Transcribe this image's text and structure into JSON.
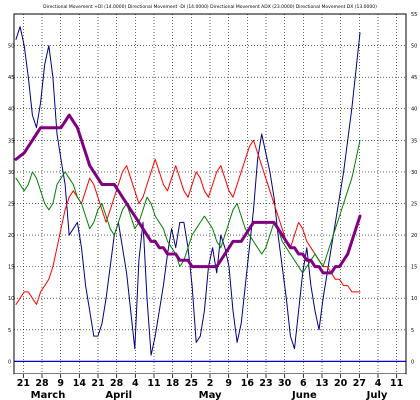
{
  "chart_data": {
    "type": "line",
    "title": "Directional Movement +DI (14.0000) Directional Movement -DI (14.0000) Directional Movement ADX (23.0000) Directional Movement DX (13.0000)",
    "ylim": [
      -2,
      55
    ],
    "y_ticks_left": [
      0,
      5,
      10,
      15,
      20,
      25,
      30,
      35,
      40,
      45,
      50
    ],
    "y_ticks_right": [
      0,
      5,
      10,
      15,
      20,
      25,
      30,
      35,
      40,
      45,
      50,
      55
    ],
    "x_ticks": [
      "21",
      "28",
      "9",
      "14",
      "21",
      "28",
      "4",
      "11",
      "18",
      "25",
      "2",
      "9",
      "16",
      "23",
      "30",
      "6",
      "13",
      "20",
      "27",
      "4",
      "11"
    ],
    "month_labels": [
      "March",
      "April",
      "May",
      "June",
      "July"
    ],
    "grid": true,
    "zero_line_color": "#0000cc",
    "series": [
      {
        "color": "#000080",
        "values": [
          51,
          53,
          50,
          45,
          39,
          37,
          41,
          47,
          50,
          45,
          36,
          32,
          28,
          20,
          21,
          22,
          18,
          12,
          8,
          4,
          4,
          6,
          10,
          15,
          20,
          22,
          18,
          14,
          8,
          2,
          16,
          22,
          10,
          1,
          4,
          8,
          12,
          17,
          21,
          18,
          22,
          22,
          18,
          12,
          3,
          4,
          8,
          15,
          18,
          14,
          20,
          18,
          15,
          8,
          3,
          6,
          12,
          18,
          24,
          32,
          36,
          33,
          30,
          26,
          20,
          15,
          10,
          4,
          2,
          8,
          14,
          18,
          12,
          8,
          5,
          10,
          14,
          18,
          22,
          26,
          30,
          35,
          40,
          46,
          52
        ]
      },
      {
        "color": "#ff0000",
        "values": [
          9,
          10,
          11,
          11,
          10,
          9,
          11,
          12,
          13,
          15,
          18,
          21,
          24,
          26,
          27,
          26,
          25,
          27,
          29,
          28,
          26,
          24,
          22,
          24,
          26,
          28,
          30,
          31,
          29,
          27,
          25,
          26,
          28,
          30,
          32,
          30,
          28,
          27,
          29,
          31,
          29,
          27,
          26,
          28,
          30,
          29,
          27,
          26,
          28,
          30,
          31,
          29,
          27,
          26,
          28,
          30,
          32,
          34,
          35,
          33,
          31,
          29,
          27,
          25,
          23,
          21,
          19,
          18,
          20,
          22,
          21,
          19,
          18,
          17,
          16,
          15,
          15,
          14,
          13,
          13,
          12,
          12,
          11,
          11,
          11
        ]
      },
      {
        "color": "#008000",
        "values": [
          29,
          28,
          27,
          28,
          30,
          29,
          27,
          25,
          24,
          25,
          28,
          29,
          30,
          29,
          28,
          26,
          25,
          23,
          21,
          22,
          24,
          25,
          23,
          21,
          20,
          22,
          24,
          25,
          23,
          21,
          22,
          24,
          26,
          25,
          23,
          22,
          21,
          19,
          18,
          17,
          15,
          16,
          18,
          20,
          21,
          22,
          23,
          22,
          21,
          19,
          18,
          20,
          22,
          24,
          25,
          23,
          21,
          20,
          19,
          18,
          17,
          18,
          20,
          22,
          21,
          19,
          18,
          17,
          16,
          15,
          14,
          15,
          16,
          17,
          16,
          15,
          17,
          19,
          21,
          23,
          25,
          27,
          29,
          32,
          35
        ]
      },
      {
        "color": "#800080",
        "values": [
          32,
          32.5,
          33,
          34,
          35,
          36,
          37,
          37,
          37,
          37,
          37,
          37,
          38,
          39,
          38,
          37,
          35,
          33,
          31,
          30,
          29,
          28,
          28,
          28,
          28,
          27,
          26,
          25,
          24,
          23,
          22,
          21,
          20,
          19,
          19,
          18,
          18,
          17,
          17,
          17,
          16,
          16,
          16,
          15,
          15,
          15,
          15,
          15,
          15,
          15,
          16,
          17,
          18,
          19,
          19,
          19,
          20,
          21,
          22,
          22,
          22,
          22,
          22,
          22,
          21,
          20,
          19,
          18,
          18,
          17,
          17,
          16,
          16,
          15,
          15,
          14,
          14,
          14,
          15,
          15,
          16,
          17,
          19,
          21,
          23
        ]
      }
    ]
  }
}
